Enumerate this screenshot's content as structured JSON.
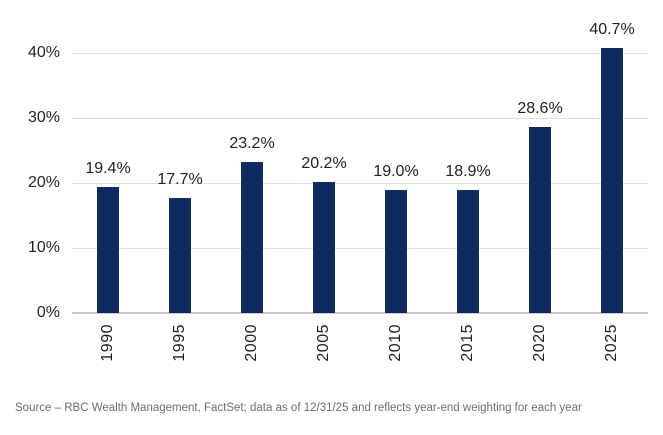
{
  "chart_data": {
    "type": "bar",
    "title": "",
    "xlabel": "",
    "ylabel": "",
    "categories": [
      "1990",
      "1995",
      "2000",
      "2005",
      "2010",
      "2015",
      "2020",
      "2025"
    ],
    "values": [
      19.4,
      17.7,
      23.2,
      20.2,
      19.0,
      18.9,
      28.6,
      40.7
    ],
    "value_labels": [
      "19.4%",
      "17.7%",
      "23.2%",
      "20.2%",
      "19.0%",
      "18.9%",
      "28.6%",
      "40.7%"
    ],
    "ylim": [
      0,
      40
    ],
    "yticks": [
      {
        "value": 0,
        "label": "0%"
      },
      {
        "value": 10,
        "label": "10%"
      },
      {
        "value": 20,
        "label": "20%"
      },
      {
        "value": 30,
        "label": "30%"
      },
      {
        "value": 40,
        "label": "40%"
      }
    ],
    "grid": true,
    "legend": "none",
    "bar_color": "#0d2b61",
    "gridline_color": "#dedede",
    "axis_line_color": "#c6c6c6",
    "tick_label_color": "#262626",
    "data_label_color": "#222222"
  },
  "source": {
    "text": "Source – RBC Wealth Management, FactSet; data as of 12/31/25 and reflects year-end weighting for each year",
    "color": "#6e6e6e"
  }
}
